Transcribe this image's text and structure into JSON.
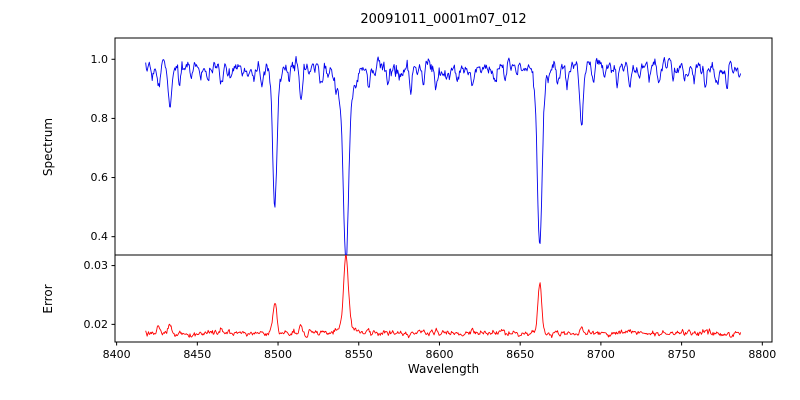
{
  "chart_data": {
    "type": "line",
    "title": "20091011_0001m07_012",
    "xlabel": "Wavelength",
    "xlim": [
      8399,
      8806
    ],
    "xticks": [
      8400,
      8450,
      8500,
      8550,
      8600,
      8650,
      8700,
      8750,
      8800
    ],
    "xtick_labels": [
      "8400",
      "8450",
      "8500",
      "8550",
      "8600",
      "8650",
      "8700",
      "8750",
      "8800"
    ],
    "x_start": 8418,
    "x_end": 8787,
    "x_step": 0.45,
    "noise_seed": 1234,
    "legend": "none",
    "grid": false,
    "panels": [
      {
        "name": "spectrum",
        "ylabel": "Spectrum",
        "color": "#0000ee",
        "ylim": [
          0.338,
          1.072
        ],
        "yticks": [
          0.4,
          0.6,
          0.8,
          1.0
        ],
        "ytick_labels": [
          "0.4",
          "0.6",
          "0.8",
          "1.0"
        ],
        "continuum": 0.972,
        "noise_sigma": 0.011,
        "absorption_lines": [
          [
            8498.0,
            0.4,
            1.8
          ],
          [
            8498.0,
            0.05,
            4.5
          ],
          [
            8542.1,
            0.5,
            2.2
          ],
          [
            8542.1,
            0.12,
            6.0
          ],
          [
            8662.1,
            0.5,
            2.0
          ],
          [
            8662.1,
            0.1,
            5.0
          ],
          [
            8422,
            0.05,
            1.0
          ],
          [
            8426,
            0.09,
            1.2
          ],
          [
            8433,
            0.14,
            1.5
          ],
          [
            8439,
            0.06,
            1.0
          ],
          [
            8446,
            0.05,
            1.0
          ],
          [
            8452,
            0.04,
            0.9
          ],
          [
            8456,
            0.05,
            1.0
          ],
          [
            8465,
            0.07,
            1.3
          ],
          [
            8471,
            0.04,
            0.9
          ],
          [
            8478,
            0.05,
            1.0
          ],
          [
            8485,
            0.04,
            0.9
          ],
          [
            8490,
            0.05,
            0.9
          ],
          [
            8507,
            0.05,
            1.0
          ],
          [
            8514,
            0.12,
            1.4
          ],
          [
            8519,
            0.05,
            1.0
          ],
          [
            8527,
            0.06,
            1.1
          ],
          [
            8536,
            0.05,
            1.0
          ],
          [
            8556,
            0.06,
            1.1
          ],
          [
            8560,
            0.04,
            0.9
          ],
          [
            8568,
            0.05,
            1.0
          ],
          [
            8575,
            0.04,
            0.9
          ],
          [
            8582,
            0.06,
            1.1
          ],
          [
            8590,
            0.04,
            0.9
          ],
          [
            8598,
            0.07,
            1.2
          ],
          [
            8605,
            0.04,
            0.9
          ],
          [
            8611,
            0.05,
            1.0
          ],
          [
            8620,
            0.06,
            1.1
          ],
          [
            8626,
            0.04,
            0.9
          ],
          [
            8635,
            0.05,
            1.0
          ],
          [
            8641,
            0.04,
            0.9
          ],
          [
            8648,
            0.05,
            1.0
          ],
          [
            8673,
            0.05,
            1.0
          ],
          [
            8679,
            0.06,
            1.1
          ],
          [
            8688,
            0.2,
            1.6
          ],
          [
            8695,
            0.05,
            1.0
          ],
          [
            8702,
            0.04,
            0.9
          ],
          [
            8710,
            0.05,
            1.0
          ],
          [
            8718,
            0.06,
            1.1
          ],
          [
            8724,
            0.04,
            0.9
          ],
          [
            8730,
            0.05,
            1.0
          ],
          [
            8736,
            0.06,
            1.0
          ],
          [
            8745,
            0.05,
            1.0
          ],
          [
            8752,
            0.04,
            0.9
          ],
          [
            8758,
            0.05,
            1.0
          ],
          [
            8765,
            0.06,
            1.1
          ],
          [
            8772,
            0.04,
            0.9
          ],
          [
            8778,
            0.05,
            1.0
          ]
        ],
        "key_points": [
          {
            "x": 8498,
            "y": 0.52,
            "note": "absorption minimum"
          },
          {
            "x": 8542,
            "y": 0.35,
            "note": "deepest absorption minimum"
          },
          {
            "x": 8662,
            "y": 0.37,
            "note": "absorption minimum"
          },
          {
            "x": 8688,
            "y": 0.78,
            "note": "minor absorption dip"
          },
          {
            "x": 8433,
            "y": 0.84,
            "note": "minor absorption dip"
          },
          {
            "x": 8514,
            "y": 0.85,
            "note": "minor absorption dip"
          }
        ]
      },
      {
        "name": "error",
        "ylabel": "Error",
        "color": "#ff0000",
        "ylim": [
          0.017,
          0.0318
        ],
        "yticks": [
          0.02,
          0.03
        ],
        "ytick_labels": [
          "0.02",
          "0.03"
        ],
        "baseline": 0.0185,
        "noise_sigma": 0.00022,
        "peaks": [
          [
            8498.0,
            0.0052,
            1.6
          ],
          [
            8542.1,
            0.012,
            2.0
          ],
          [
            8542.1,
            0.0015,
            6.0
          ],
          [
            8662.1,
            0.0088,
            1.6
          ],
          [
            8426,
            0.0008,
            1.2
          ],
          [
            8433,
            0.0015,
            1.4
          ],
          [
            8465,
            0.0006,
            1.0
          ],
          [
            8514,
            0.0012,
            1.2
          ],
          [
            8520,
            0.0006,
            1.0
          ],
          [
            8556,
            0.0005,
            1.0
          ],
          [
            8598,
            0.0005,
            1.0
          ],
          [
            8620,
            0.0005,
            1.0
          ],
          [
            8688,
            0.0013,
            1.2
          ],
          [
            8718,
            0.0005,
            1.0
          ],
          [
            8765,
            0.0006,
            1.0
          ]
        ],
        "key_points": [
          {
            "x": 8498,
            "y": 0.024,
            "note": "error spike"
          },
          {
            "x": 8542,
            "y": 0.031,
            "note": "largest error spike"
          },
          {
            "x": 8662,
            "y": 0.0275,
            "note": "error spike"
          },
          {
            "x": 8600,
            "y": 0.0185,
            "note": "typical baseline level"
          }
        ]
      }
    ]
  }
}
